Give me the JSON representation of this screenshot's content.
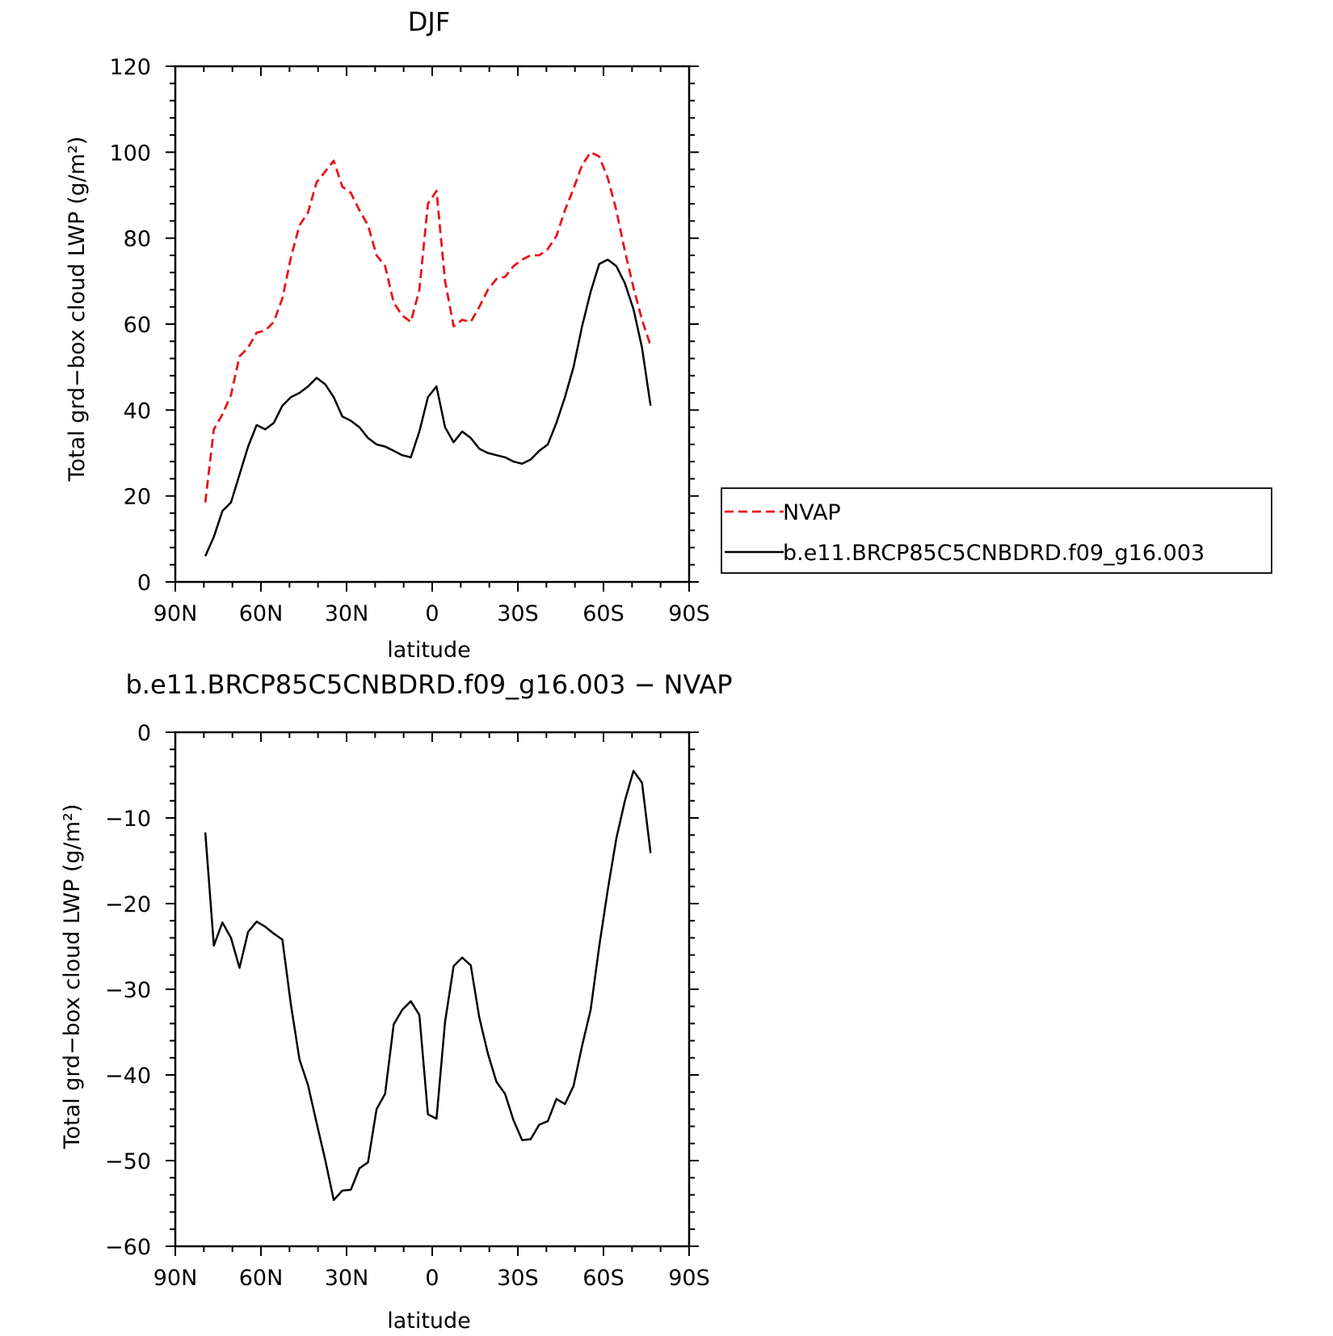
{
  "chart_data": [
    {
      "type": "line",
      "title": "DJF",
      "xlabel": "latitude",
      "ylabel": "Total grd−box cloud LWP (g/m²)",
      "xlim": [
        90,
        -90
      ],
      "ylim": [
        0,
        120
      ],
      "xticks": [
        90,
        60,
        30,
        0,
        -30,
        -60,
        -90
      ],
      "xticklabels": [
        "90N",
        "60N",
        "30N",
        "0",
        "30S",
        "60S",
        "90S"
      ],
      "yticks": [
        0,
        20,
        40,
        60,
        80,
        100,
        120
      ],
      "yticklabels": [
        "0",
        "20",
        "40",
        "60",
        "80",
        "100",
        "120"
      ],
      "grid": false,
      "legend": "right",
      "series": [
        {
          "name": "NVAP",
          "color": "#e8151a",
          "dash": "dashed",
          "x": [
            79.5,
            76.5,
            73.5,
            70.5,
            67.5,
            64.5,
            61.5,
            58.5,
            55.5,
            52.5,
            49.5,
            46.5,
            43.5,
            40.5,
            37.5,
            34.5,
            31.5,
            28.5,
            25.5,
            22.5,
            19.5,
            16.5,
            13.5,
            10.5,
            7.5,
            4.5,
            1.5,
            -1.5,
            -4.5,
            -7.5,
            -10.5,
            -13.5,
            -16.5,
            -19.5,
            -22.5,
            -25.5,
            -28.5,
            -31.5,
            -34.5,
            -37.5,
            -40.5,
            -43.5,
            -46.5,
            -49.5,
            -52.5,
            -55.5,
            -58.5,
            -61.5,
            -64.5,
            -67.5,
            -70.5,
            -73.5,
            -76.5
          ],
          "values": [
            18.5,
            35.5,
            39,
            43.5,
            52.5,
            54.5,
            58,
            58.5,
            60.5,
            66,
            75.5,
            83,
            86,
            93,
            95.5,
            98,
            92,
            90.5,
            86.5,
            83,
            76,
            73.5,
            65,
            62,
            60.5,
            68,
            88,
            91,
            70,
            59.5,
            61,
            60.5,
            64,
            68,
            70.5,
            71,
            73.5,
            75,
            76,
            76,
            77.5,
            80.5,
            86.5,
            91.5,
            97,
            100,
            99,
            94,
            86.5,
            77,
            68.5,
            61,
            55
          ]
        },
        {
          "name": "b.e11.BRCP85C5CNBDRD.f09_g16.003",
          "color": "#000000",
          "dash": "solid",
          "x": [
            79.5,
            76.5,
            73.5,
            70.5,
            67.5,
            64.5,
            61.5,
            58.5,
            55.5,
            52.5,
            49.5,
            46.5,
            43.5,
            40.5,
            37.5,
            34.5,
            31.5,
            28.5,
            25.5,
            22.5,
            19.5,
            16.5,
            13.5,
            10.5,
            7.5,
            4.5,
            1.5,
            -1.5,
            -4.5,
            -7.5,
            -10.5,
            -13.5,
            -16.5,
            -19.5,
            -22.5,
            -25.5,
            -28.5,
            -31.5,
            -34.5,
            -37.5,
            -40.5,
            -43.5,
            -46.5,
            -49.5,
            -52.5,
            -55.5,
            -58.5,
            -61.5,
            -64.5,
            -67.5,
            -70.5,
            -73.5,
            -76.5
          ],
          "values": [
            6,
            10.5,
            16.5,
            18.5,
            25,
            31.5,
            36.5,
            35.5,
            37,
            41,
            43,
            44,
            45.5,
            47.5,
            46,
            43,
            38.5,
            37.5,
            36,
            33.5,
            32,
            31.5,
            30.5,
            29.5,
            29,
            35,
            43,
            45.5,
            36,
            32.5,
            35,
            33.5,
            31,
            30,
            29.5,
            29,
            28,
            27.5,
            28.5,
            30.5,
            32,
            37,
            43,
            50,
            59.5,
            67.5,
            74,
            75,
            73.5,
            69.5,
            63.5,
            54.5,
            41
          ]
        }
      ]
    },
    {
      "type": "line",
      "title": "b.e11.BRCP85C5CNBDRD.f09_g16.003 − NVAP",
      "xlabel": "latitude",
      "ylabel": "Total grd−box cloud LWP (g/m²)",
      "xlim": [
        90,
        -90
      ],
      "ylim": [
        -60,
        0
      ],
      "xticks": [
        90,
        60,
        30,
        0,
        -30,
        -60,
        -90
      ],
      "xticklabels": [
        "90N",
        "60N",
        "30N",
        "0",
        "30S",
        "60S",
        "90S"
      ],
      "yticks": [
        -60,
        -50,
        -40,
        -30,
        -20,
        -10,
        0
      ],
      "yticklabels": [
        "−60",
        "−50",
        "−40",
        "−30",
        "−20",
        "−10",
        "0"
      ],
      "grid": false,
      "series": [
        {
          "color": "#000000",
          "dash": "solid",
          "x": [
            79.5,
            76.5,
            73.5,
            70.5,
            67.5,
            64.5,
            61.5,
            58.5,
            55.5,
            52.5,
            49.5,
            46.5,
            43.5,
            40.5,
            37.5,
            34.5,
            31.5,
            28.5,
            25.5,
            22.5,
            19.5,
            16.5,
            13.5,
            10.5,
            7.5,
            4.5,
            1.5,
            -1.5,
            -4.5,
            -7.5,
            -10.5,
            -13.5,
            -16.5,
            -19.5,
            -22.5,
            -25.5,
            -28.5,
            -31.5,
            -34.5,
            -37.5,
            -40.5,
            -43.5,
            -46.5,
            -49.5,
            -52.5,
            -55.5,
            -58.5,
            -61.5,
            -64.5,
            -67.5,
            -70.5,
            -73.5,
            -76.5
          ],
          "values": [
            -11.7,
            -24.9,
            -22.2,
            -24,
            -27.5,
            -23.3,
            -22.1,
            -22.7,
            -23.5,
            -24.2,
            -31.8,
            -38.2,
            -41.2,
            -45.6,
            -49.9,
            -54.6,
            -53.5,
            -53.4,
            -50.9,
            -50.2,
            -44,
            -42.2,
            -34.1,
            -32.4,
            -31.4,
            -33,
            -44.6,
            -45.1,
            -33.8,
            -27.3,
            -26.3,
            -27.2,
            -33.3,
            -37.5,
            -40.8,
            -42.2,
            -45.3,
            -47.6,
            -47.5,
            -45.8,
            -45.4,
            -42.8,
            -43.4,
            -41.3,
            -36.6,
            -32.4,
            -25,
            -18.4,
            -12.4,
            -8,
            -4.5,
            -5.9,
            -14.1
          ]
        }
      ]
    }
  ]
}
